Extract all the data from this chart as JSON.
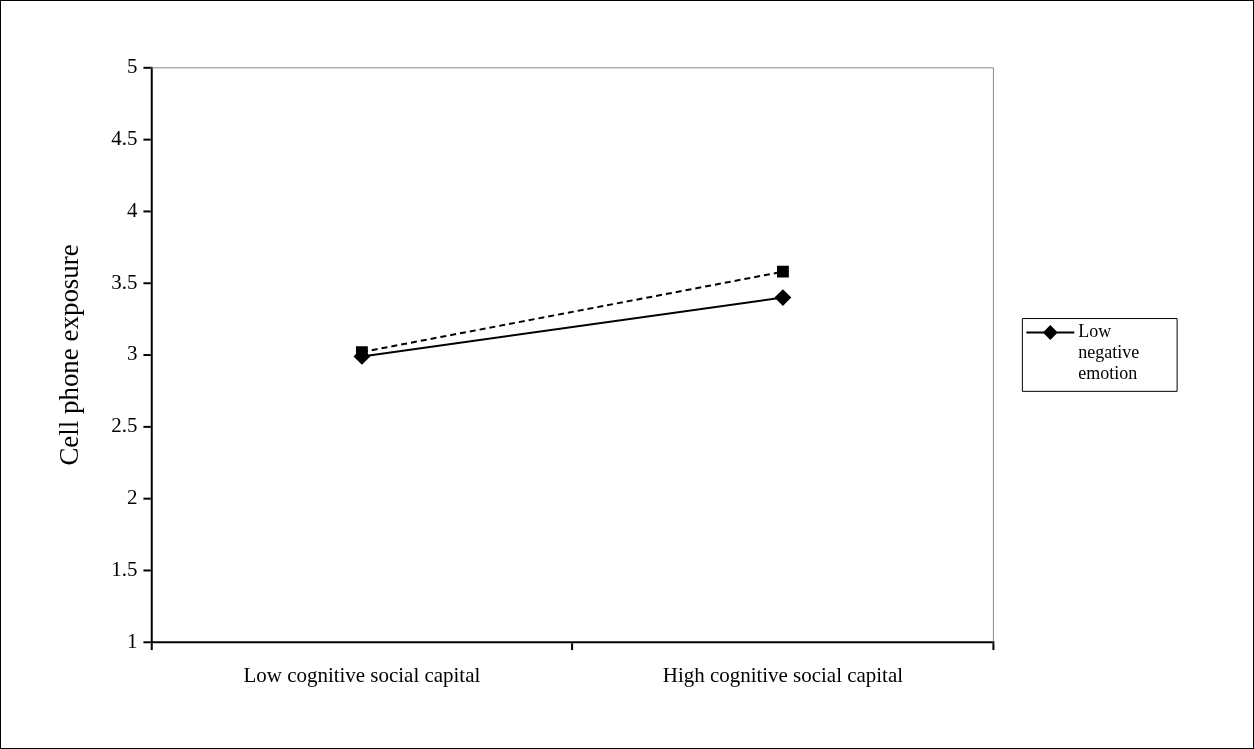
{
  "chart_data": {
    "type": "line",
    "ylabel": "Cell phone exposure",
    "categories": [
      "Low cognitive social capital",
      "High cognitive social capital"
    ],
    "series": [
      {
        "name": "Low negative emotion",
        "color": "#000000",
        "values": [
          2.99,
          3.4
        ],
        "marker": "diamond",
        "line_style": "solid"
      },
      {
        "color": "#000000",
        "values": [
          3.02,
          3.58
        ],
        "marker": "square",
        "line_style": "dashed"
      }
    ],
    "ylim": [
      1,
      5
    ],
    "yticks": [
      1,
      1.5,
      2,
      2.5,
      3,
      3.5,
      4,
      4.5,
      5
    ],
    "grid": false,
    "legend": "right"
  }
}
